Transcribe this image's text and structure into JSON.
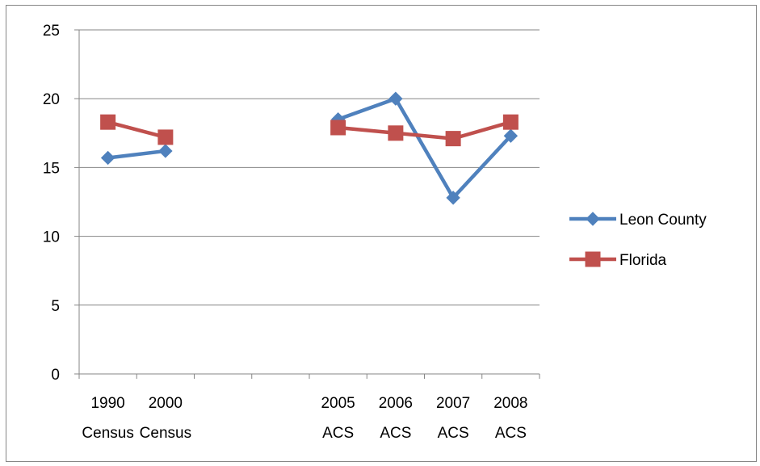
{
  "chart_data": {
    "type": "line",
    "title": "",
    "xlabel": "",
    "ylabel": "",
    "categories": [
      [
        "1990",
        "Census"
      ],
      [
        "2000",
        "Census"
      ],
      [
        "",
        ""
      ],
      [
        "",
        ""
      ],
      [
        "2005",
        "ACS"
      ],
      [
        "2006",
        "ACS"
      ],
      [
        "2007",
        "ACS"
      ],
      [
        "2008",
        "ACS"
      ]
    ],
    "ylim": [
      0,
      25
    ],
    "yticks": [
      0,
      5,
      10,
      15,
      20,
      25
    ],
    "grid": true,
    "legend_position": "right",
    "series": [
      {
        "name": "Leon County",
        "color": "#4F81BD",
        "marker": "diamond",
        "values": [
          15.7,
          16.2,
          null,
          null,
          18.5,
          20.0,
          12.8,
          17.3
        ]
      },
      {
        "name": "Florida",
        "color": "#C0504D",
        "marker": "square",
        "values": [
          18.3,
          17.2,
          null,
          null,
          17.9,
          17.5,
          17.1,
          18.3
        ]
      }
    ]
  }
}
